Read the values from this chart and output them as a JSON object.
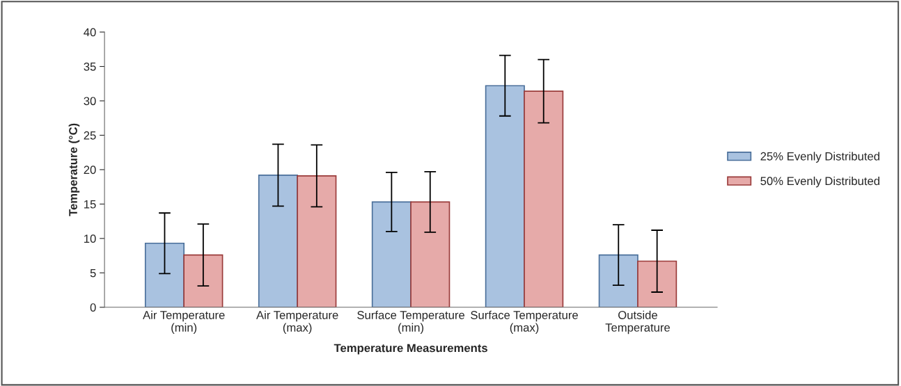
{
  "chart_data": {
    "type": "bar",
    "xlabel": "Temperature Measurements",
    "ylabel": "Temperature (°C)",
    "categories": [
      "Air Temperature\n(min)",
      "Air Temperature\n(max)",
      "Surface Temperature\n(min)",
      "Surface Temperature\n(max)",
      "Outside\nTemperature"
    ],
    "series": [
      {
        "name": "25% Evenly Distributed",
        "color": "#a9c2e0",
        "values": [
          9.3,
          19.2,
          15.3,
          32.2,
          7.6
        ],
        "errors": [
          4.4,
          4.5,
          4.3,
          4.4,
          4.4
        ]
      },
      {
        "name": "50% Evenly Distributed",
        "color": "#e6aaa9",
        "values": [
          7.6,
          19.1,
          15.3,
          31.4,
          6.7
        ],
        "errors": [
          4.5,
          4.5,
          4.4,
          4.6,
          4.5
        ]
      }
    ],
    "ylim": [
      0,
      40
    ],
    "yticks": [
      0,
      5,
      10,
      15,
      20,
      25,
      30,
      35,
      40
    ],
    "grid": false,
    "legend": "right"
  }
}
